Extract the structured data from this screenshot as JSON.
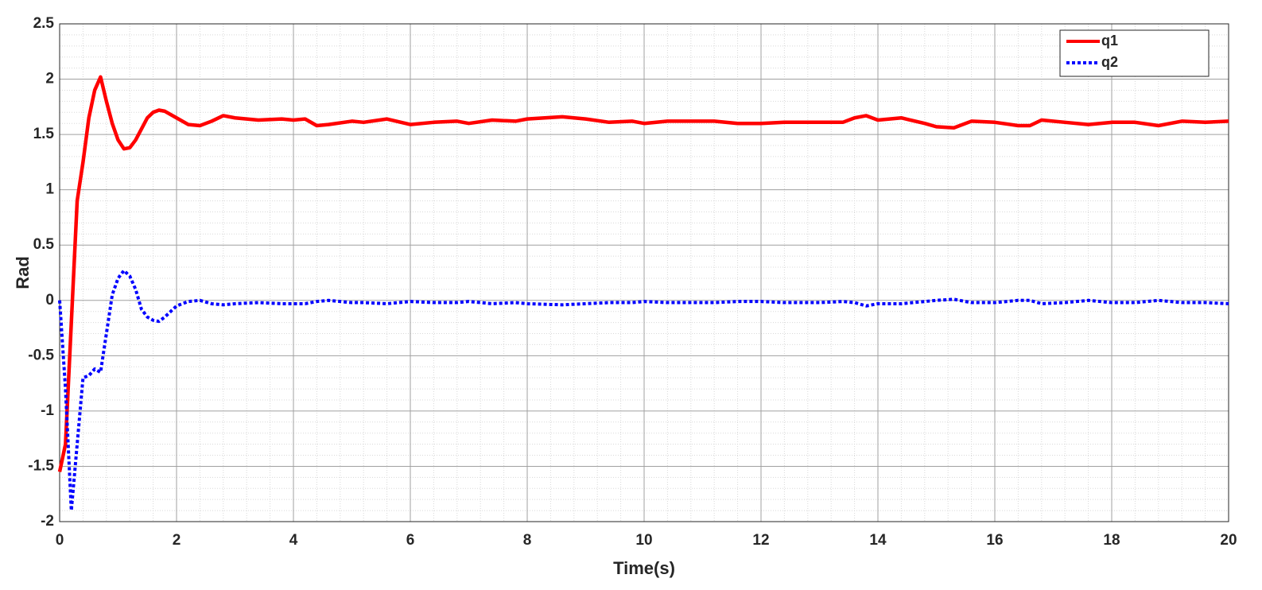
{
  "chart_data": {
    "type": "line",
    "xlabel": "Time(s)",
    "ylabel": "Rad",
    "x": [
      0,
      0.1,
      0.2,
      0.3,
      0.4,
      0.5,
      0.6,
      0.7,
      0.8,
      0.9,
      1.0,
      1.1,
      1.2,
      1.3,
      1.4,
      1.5,
      1.6,
      1.7,
      1.8,
      2.0,
      2.2,
      2.4,
      2.6,
      2.8,
      3.0,
      3.4,
      3.8,
      4.0,
      4.2,
      4.4,
      4.6,
      5.0,
      5.2,
      5.6,
      6.0,
      6.4,
      6.8,
      7.0,
      7.4,
      7.8,
      8.0,
      8.6,
      9.0,
      9.4,
      9.8,
      10.0,
      10.4,
      10.8,
      11.2,
      11.6,
      12.0,
      12.4,
      13.0,
      13.4,
      13.6,
      13.8,
      14.0,
      14.4,
      14.8,
      15.0,
      15.3,
      15.6,
      16.0,
      16.4,
      16.6,
      16.8,
      17.2,
      17.6,
      18.0,
      18.4,
      18.8,
      19.2,
      19.6,
      20.0
    ],
    "series": [
      {
        "name": "q1",
        "color": "#ff0000",
        "dash": "solid",
        "values": [
          -1.55,
          -1.3,
          -0.2,
          0.9,
          1.25,
          1.65,
          1.9,
          2.02,
          1.8,
          1.6,
          1.45,
          1.37,
          1.38,
          1.45,
          1.55,
          1.65,
          1.7,
          1.72,
          1.71,
          1.65,
          1.59,
          1.58,
          1.62,
          1.67,
          1.65,
          1.63,
          1.64,
          1.63,
          1.64,
          1.58,
          1.59,
          1.62,
          1.61,
          1.64,
          1.59,
          1.61,
          1.62,
          1.6,
          1.63,
          1.62,
          1.64,
          1.66,
          1.64,
          1.61,
          1.62,
          1.6,
          1.62,
          1.62,
          1.62,
          1.6,
          1.6,
          1.61,
          1.61,
          1.61,
          1.65,
          1.67,
          1.63,
          1.65,
          1.6,
          1.57,
          1.56,
          1.62,
          1.61,
          1.58,
          1.58,
          1.63,
          1.61,
          1.59,
          1.61,
          1.61,
          1.58,
          1.62,
          1.61,
          1.62
        ]
      },
      {
        "name": "q2",
        "color": "#0000ff",
        "dash": "dotted",
        "values": [
          0,
          -0.8,
          -1.9,
          -1.3,
          -0.7,
          -0.68,
          -0.62,
          -0.65,
          -0.3,
          0.05,
          0.2,
          0.27,
          0.22,
          0.1,
          -0.08,
          -0.15,
          -0.18,
          -0.19,
          -0.15,
          -0.05,
          -0.01,
          0,
          -0.03,
          -0.04,
          -0.03,
          -0.02,
          -0.03,
          -0.03,
          -0.03,
          -0.01,
          0,
          -0.02,
          -0.02,
          -0.03,
          -0.01,
          -0.02,
          -0.02,
          -0.01,
          -0.03,
          -0.02,
          -0.03,
          -0.04,
          -0.03,
          -0.02,
          -0.02,
          -0.01,
          -0.02,
          -0.02,
          -0.02,
          -0.01,
          -0.01,
          -0.02,
          -0.02,
          -0.01,
          -0.02,
          -0.05,
          -0.03,
          -0.03,
          -0.01,
          0,
          0.01,
          -0.02,
          -0.02,
          0,
          0,
          -0.03,
          -0.02,
          0,
          -0.02,
          -0.02,
          0,
          -0.02,
          -0.02,
          -0.03
        ]
      }
    ],
    "xlim": [
      0,
      20
    ],
    "xticks": [
      0,
      2,
      4,
      6,
      8,
      10,
      12,
      14,
      16,
      18,
      20
    ],
    "ylim": [
      -2,
      2.5
    ],
    "yticks": [
      -2,
      -1.5,
      -1,
      -0.5,
      0,
      0.5,
      1,
      1.5,
      2,
      2.5
    ],
    "grid": true,
    "minor_grid": true,
    "legend": "upper right"
  }
}
